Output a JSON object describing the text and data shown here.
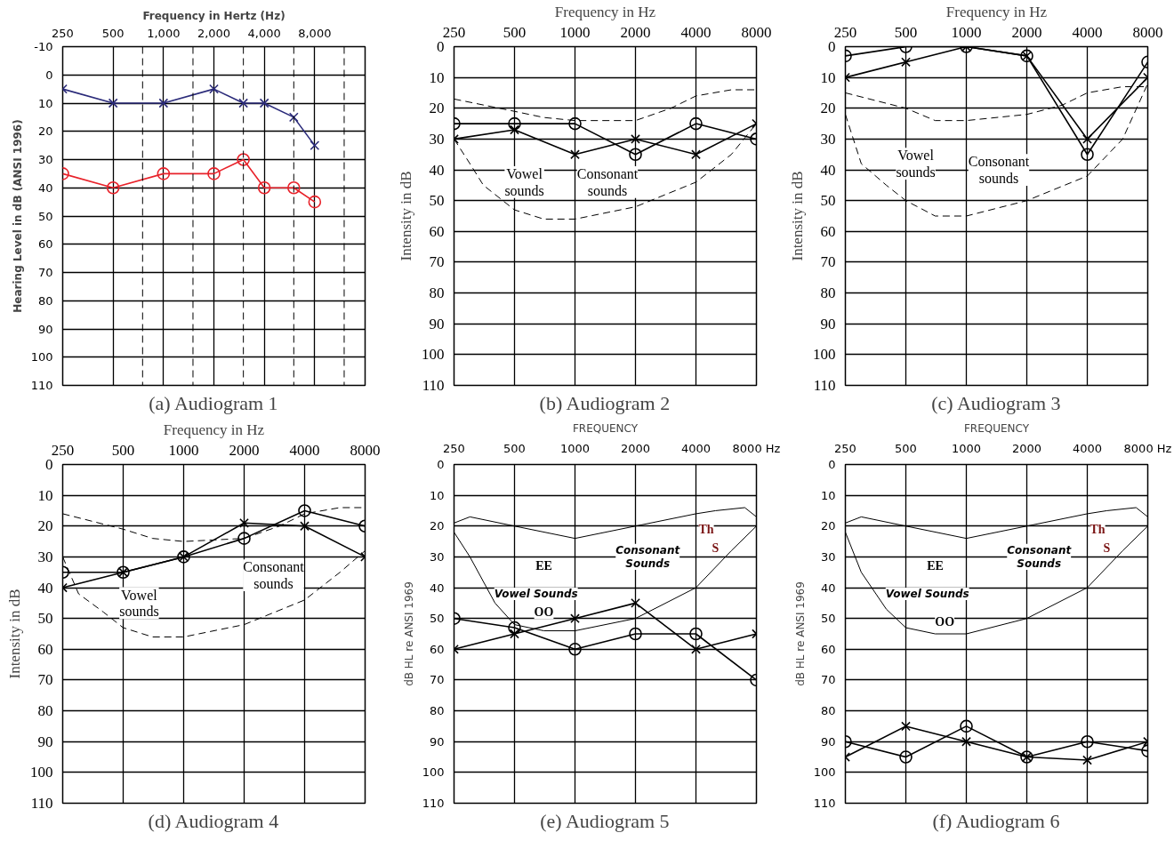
{
  "chart_data": [
    {
      "type": "line",
      "title": "(a) Audiogram 1",
      "xlabel": "Frequency in Hertz (Hz)",
      "ylabel": "Hearing Level in dB (ANSI 1996)",
      "log": "x",
      "grid": true,
      "x": [
        250,
        500,
        1000,
        2000,
        3000,
        4000,
        6000,
        8000
      ],
      "xlim": [
        250,
        16000
      ],
      "xticks": [
        250,
        500,
        {
          "value": 1000,
          "label": "1,000"
        },
        {
          "value": 2000,
          "label": "2,000"
        },
        {
          "value": 4000,
          "label": "4,000"
        },
        {
          "value": 8000,
          "label": "8,000"
        }
      ],
      "ylim": [
        110,
        -10
      ],
      "yticks": [
        -10,
        0,
        10,
        20,
        30,
        40,
        50,
        60,
        70,
        80,
        90,
        100,
        110
      ],
      "series": [
        {
          "color": "#2b2b7a",
          "marker": "cross",
          "line_style": "solid",
          "values": [
            5,
            10,
            10,
            5,
            10,
            10,
            15,
            25
          ]
        },
        {
          "color": "#e8222a",
          "marker": "circle",
          "line_style": "solid",
          "values": [
            35,
            40,
            35,
            35,
            30,
            40,
            40,
            45
          ]
        }
      ],
      "ref_lines": [
        {
          "axis": "x",
          "value": 750,
          "line_style": "dashed"
        },
        {
          "axis": "x",
          "value": 1500,
          "line_style": "dashed"
        },
        {
          "axis": "x",
          "value": 3000,
          "line_style": "dashed"
        },
        {
          "axis": "x",
          "value": 6000,
          "line_style": "dashed"
        },
        {
          "axis": "x",
          "value": 12000,
          "line_style": "dashed"
        }
      ]
    },
    {
      "type": "line",
      "title": "(b) Audiogram 2",
      "xlabel": "Frequency in Hz",
      "ylabel": "Intensity in dB",
      "log": "x",
      "grid": true,
      "x": [
        250,
        500,
        1000,
        2000,
        4000,
        8000
      ],
      "xlim": [
        250,
        8000
      ],
      "xticks": [
        250,
        500,
        1000,
        2000,
        4000,
        8000
      ],
      "ylim": [
        110,
        0
      ],
      "yticks": [
        0,
        10,
        20,
        30,
        40,
        50,
        60,
        70,
        80,
        90,
        100,
        110
      ],
      "series": [
        {
          "color": "#000000",
          "marker": "circle",
          "line_style": "solid",
          "values": [
            25,
            25,
            25,
            35,
            25,
            30
          ]
        },
        {
          "color": "#000000",
          "marker": "cross",
          "line_style": "solid",
          "values": [
            30,
            27,
            35,
            30,
            35,
            25
          ]
        },
        {
          "color": "#000000",
          "marker": "none",
          "line_style": "dashed",
          "x": [
            250,
            500,
            700,
            1000,
            2000,
            3000,
            4000,
            6000,
            8000
          ],
          "values": [
            17,
            21,
            23,
            24,
            24,
            20,
            16,
            14,
            14
          ]
        },
        {
          "color": "#000000",
          "marker": "none",
          "line_style": "dashed",
          "x": [
            250,
            300,
            350,
            500,
            700,
            1000,
            2000,
            4000,
            6000,
            8000
          ],
          "values": [
            30,
            38,
            45,
            53,
            56,
            56,
            52,
            44,
            35,
            25
          ]
        }
      ],
      "annotations": [
        "Vowel\nsounds",
        "Consonant\nsounds"
      ]
    },
    {
      "type": "line",
      "title": "(c) Audiogram 3",
      "xlabel": "Frequency in Hz",
      "ylabel": "Intensity in dB",
      "log": "x",
      "grid": true,
      "x": [
        250,
        500,
        1000,
        2000,
        4000,
        8000
      ],
      "xlim": [
        250,
        8000
      ],
      "xticks": [
        250,
        500,
        1000,
        2000,
        4000,
        8000
      ],
      "ylim": [
        110,
        0
      ],
      "yticks": [
        0,
        10,
        20,
        30,
        40,
        50,
        60,
        70,
        80,
        90,
        100,
        110
      ],
      "series": [
        {
          "color": "#000000",
          "marker": "circle",
          "line_style": "solid",
          "values": [
            3,
            0,
            0,
            3,
            35,
            5
          ]
        },
        {
          "color": "#000000",
          "marker": "cross",
          "line_style": "solid",
          "values": [
            10,
            5,
            0,
            3,
            30,
            10
          ]
        },
        {
          "color": "#000000",
          "marker": "none",
          "line_style": "dashed",
          "x": [
            250,
            500,
            700,
            1000,
            2000,
            3000,
            4000,
            6000,
            8000
          ],
          "values": [
            15,
            20,
            24,
            24,
            22,
            19,
            15,
            13,
            13
          ]
        },
        {
          "color": "#000000",
          "marker": "none",
          "line_style": "dashed",
          "x": [
            250,
            300,
            400,
            500,
            700,
            1000,
            2000,
            4000,
            6000,
            8000
          ],
          "values": [
            22,
            38,
            45,
            50,
            55,
            55,
            50,
            42,
            30,
            12
          ]
        }
      ],
      "annotations": [
        "Vowel\nsounds",
        "Consonant\nsounds"
      ]
    },
    {
      "type": "line",
      "title": "(d) Audiogram 4",
      "xlabel": "Frequency in Hz",
      "ylabel": "Intensity in dB",
      "log": "x",
      "grid": true,
      "x": [
        250,
        500,
        1000,
        2000,
        4000,
        8000
      ],
      "xlim": [
        250,
        8000
      ],
      "xticks": [
        250,
        500,
        1000,
        2000,
        4000,
        8000
      ],
      "ylim": [
        110,
        0
      ],
      "yticks": [
        0,
        10,
        20,
        30,
        40,
        50,
        60,
        70,
        80,
        90,
        100,
        110
      ],
      "series": [
        {
          "color": "#000000",
          "marker": "circle",
          "line_style": "solid",
          "values": [
            35,
            35,
            30,
            24,
            15,
            20
          ]
        },
        {
          "color": "#000000",
          "marker": "cross",
          "line_style": "solid",
          "values": [
            40,
            35,
            30,
            19,
            20,
            30
          ]
        },
        {
          "color": "#000000",
          "marker": "none",
          "line_style": "dashed",
          "x": [
            250,
            500,
            700,
            1000,
            2000,
            3000,
            4000,
            6000,
            8000
          ],
          "values": [
            16,
            21,
            24,
            25,
            24,
            20,
            16,
            14,
            14
          ]
        },
        {
          "color": "#000000",
          "marker": "none",
          "line_style": "dashed",
          "x": [
            250,
            300,
            400,
            500,
            700,
            1000,
            2000,
            4000,
            6000,
            8000
          ],
          "values": [
            30,
            42,
            48,
            53,
            56,
            56,
            52,
            44,
            35,
            28
          ]
        }
      ],
      "annotations": [
        "Vowel\nsounds",
        "Consonant\nsounds"
      ]
    },
    {
      "type": "line",
      "title": "(e) Audiogram 5",
      "xlabel": "FREQUENCY",
      "ylabel": "dB HL re ANSI 1969",
      "log": "x",
      "grid": true,
      "x": [
        250,
        500,
        1000,
        2000,
        4000,
        8000
      ],
      "xlim": [
        250,
        8000
      ],
      "xticks": [
        250,
        500,
        1000,
        2000,
        4000,
        {
          "value": 8000,
          "label": "8000 Hz"
        }
      ],
      "ylim": [
        110,
        0
      ],
      "yticks": [
        0,
        10,
        20,
        30,
        40,
        50,
        60,
        70,
        80,
        90,
        100,
        110
      ],
      "series": [
        {
          "color": "#000000",
          "marker": "circle",
          "line_style": "solid",
          "values": [
            50,
            53,
            60,
            55,
            55,
            70
          ]
        },
        {
          "color": "#000000",
          "marker": "cross",
          "line_style": "solid",
          "values": [
            60,
            55,
            50,
            45,
            60,
            55
          ]
        },
        {
          "color": "#000000",
          "marker": "none",
          "line_style": "solid",
          "x": [
            250,
            300,
            500,
            1000,
            2000,
            4000,
            5000,
            7000,
            8000
          ],
          "values": [
            19,
            17,
            20,
            24,
            20,
            16,
            15,
            14,
            17
          ]
        },
        {
          "color": "#000000",
          "marker": "none",
          "line_style": "solid",
          "x": [
            250,
            300,
            400,
            500,
            700,
            1000,
            2000,
            4000,
            6000,
            8000
          ],
          "values": [
            22,
            30,
            45,
            52,
            54,
            54,
            50,
            40,
            28,
            20
          ]
        }
      ],
      "annotations": [
        "Th",
        "S",
        "Consonant\nSounds",
        "EE",
        "Vowel Sounds",
        "OO"
      ]
    },
    {
      "type": "line",
      "title": "(f) Audiogram 6",
      "xlabel": "FREQUENCY",
      "ylabel": "dB HL re ANSI 1969",
      "log": "x",
      "grid": true,
      "x": [
        250,
        500,
        1000,
        2000,
        4000,
        8000
      ],
      "xlim": [
        250,
        8000
      ],
      "xticks": [
        250,
        500,
        1000,
        2000,
        4000,
        {
          "value": 8000,
          "label": "8000 Hz"
        }
      ],
      "ylim": [
        110,
        0
      ],
      "yticks": [
        0,
        10,
        20,
        30,
        40,
        50,
        60,
        70,
        80,
        90,
        100,
        110
      ],
      "series": [
        {
          "color": "#000000",
          "marker": "circle",
          "line_style": "solid",
          "values": [
            90,
            95,
            85,
            95,
            90,
            93
          ]
        },
        {
          "color": "#000000",
          "marker": "cross",
          "line_style": "solid",
          "values": [
            95,
            85,
            90,
            95,
            96,
            90
          ]
        },
        {
          "color": "#000000",
          "marker": "none",
          "line_style": "solid",
          "x": [
            250,
            300,
            500,
            1000,
            2000,
            4000,
            5000,
            7000,
            8000
          ],
          "values": [
            19,
            17,
            20,
            24,
            20,
            16,
            15,
            14,
            17
          ]
        },
        {
          "color": "#000000",
          "marker": "none",
          "line_style": "solid",
          "x": [
            250,
            300,
            400,
            500,
            700,
            1000,
            2000,
            4000,
            6000,
            8000
          ],
          "values": [
            22,
            35,
            47,
            53,
            55,
            55,
            50,
            40,
            28,
            20
          ]
        }
      ],
      "annotations": [
        "Th",
        "S",
        "Consonant\nSounds",
        "EE",
        "Vowel Sounds",
        "OO"
      ]
    }
  ]
}
